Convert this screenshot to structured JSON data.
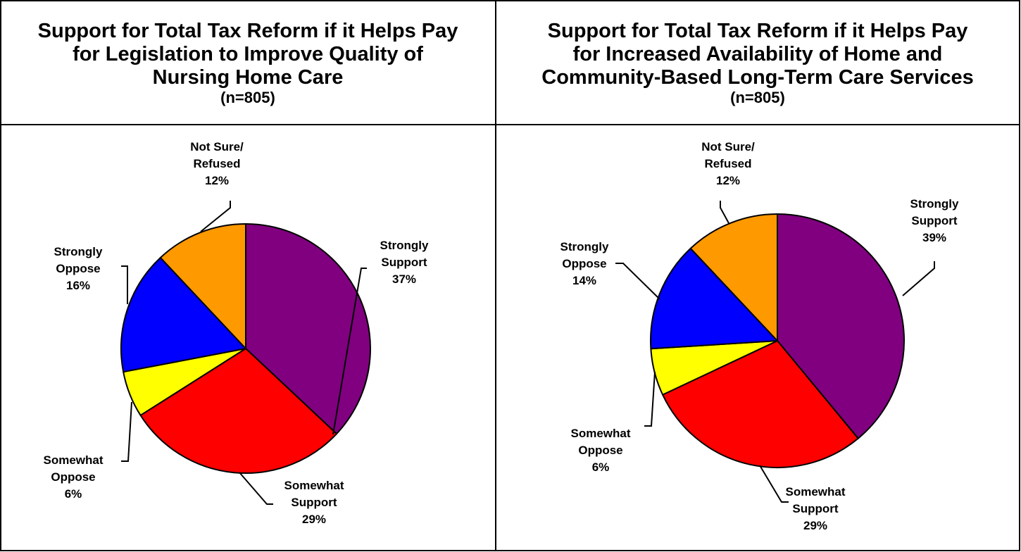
{
  "chart_data": [
    {
      "type": "pie",
      "title": "Support for Total Tax Reform if it Helps Pay for Legislation to Improve Quality of Nursing Home Care",
      "subtitle": "(n=805)",
      "slices": [
        {
          "label_lines": [
            "Strongly",
            "Support"
          ],
          "name": "Strongly Support",
          "value": 37,
          "value_label": "37%",
          "color": "#800080"
        },
        {
          "label_lines": [
            "Somewhat",
            "Support"
          ],
          "name": "Somewhat Support",
          "value": 29,
          "value_label": "29%",
          "color": "#ff0000"
        },
        {
          "label_lines": [
            "Somewhat",
            "Oppose"
          ],
          "name": "Somewhat Oppose",
          "value": 6,
          "value_label": "6%",
          "color": "#ffff00"
        },
        {
          "label_lines": [
            "Strongly",
            "Oppose"
          ],
          "name": "Strongly Oppose",
          "value": 16,
          "value_label": "16%",
          "color": "#0000ff"
        },
        {
          "label_lines": [
            "Not Sure/",
            "Refused"
          ],
          "name": "Not Sure/Refused",
          "value": 12,
          "value_label": "12%",
          "color": "#ff9900"
        }
      ]
    },
    {
      "type": "pie",
      "title": "Support for Total Tax Reform if it Helps Pay for Increased Availability of Home and Community-Based Long-Term Care Services",
      "subtitle": "(n=805)",
      "slices": [
        {
          "label_lines": [
            "Strongly",
            "Support"
          ],
          "name": "Strongly Support",
          "value": 39,
          "value_label": "39%",
          "color": "#800080"
        },
        {
          "label_lines": [
            "Somewhat",
            "Support"
          ],
          "name": "Somewhat Support",
          "value": 29,
          "value_label": "29%",
          "color": "#ff0000"
        },
        {
          "label_lines": [
            "Somewhat",
            "Oppose"
          ],
          "name": "Somewhat Oppose",
          "value": 6,
          "value_label": "6%",
          "color": "#ffff00"
        },
        {
          "label_lines": [
            "Strongly",
            "Oppose"
          ],
          "name": "Strongly Oppose",
          "value": 14,
          "value_label": "14%",
          "color": "#0000ff"
        },
        {
          "label_lines": [
            "Not Sure/",
            "Refused"
          ],
          "name": "Not Sure/Refused",
          "value": 12,
          "value_label": "12%",
          "color": "#ff9900"
        }
      ]
    }
  ],
  "titles": {
    "left": {
      "lines": [
        "Support for Total Tax Reform if it Helps Pay",
        "for Legislation to Improve Quality of",
        "Nursing Home Care"
      ],
      "n": "(n=805)"
    },
    "right": {
      "lines": [
        "Support for Total Tax Reform if it Helps Pay",
        "for Increased Availability of Home and",
        "Community-Based Long-Term Care Services"
      ],
      "n": "(n=805)"
    }
  }
}
